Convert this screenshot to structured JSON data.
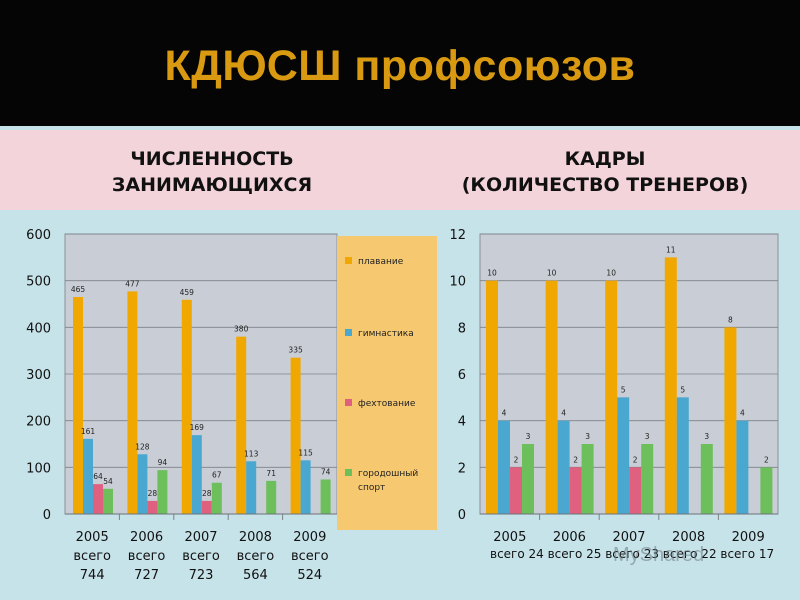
{
  "title": "КДЮСШ профсоюзов",
  "left_heading": [
    "ЧИСЛЕННОСТЬ",
    "ЗАНИМАЮЩИХСЯ"
  ],
  "right_heading": [
    "КАДРЫ",
    "(КОЛИЧЕСТВО ТРЕНЕРОВ)"
  ],
  "watermark": "MyShared",
  "colors": {
    "swimming": "#f0a800",
    "gymnastics": "#4aa8d0",
    "fencing": "#e06080",
    "gorodki": "#6cbf5a",
    "plot_bg": "#c9ced6",
    "legend_bg": "#f6c870"
  },
  "chart_data": [
    {
      "type": "bar",
      "categories": [
        [
          "2005",
          "всего",
          "744"
        ],
        [
          "2006",
          "всего",
          "727"
        ],
        [
          "2007",
          "всего",
          "723"
        ],
        [
          "2008",
          "всего",
          "564"
        ],
        [
          "2009",
          "всего",
          "524"
        ]
      ],
      "ylim": [
        0,
        600
      ],
      "yticks": [
        "0",
        "100",
        "200",
        "300",
        "400",
        "500",
        "600"
      ],
      "series": [
        {
          "name": "плавание",
          "color": "#f0a800",
          "values": [
            465,
            477,
            459,
            380,
            335
          ],
          "labels": [
            "465",
            "477",
            "459",
            "380",
            "335"
          ]
        },
        {
          "name": "гимнастика",
          "color": "#4aa8d0",
          "values": [
            161,
            128,
            169,
            113,
            115
          ],
          "labels": [
            "161",
            "128",
            "169",
            "113",
            "115"
          ]
        },
        {
          "name": "фехтование",
          "color": "#e06080",
          "values": [
            64,
            28,
            28,
            null,
            null
          ],
          "labels": [
            "64",
            "28",
            "28",
            "",
            ""
          ]
        },
        {
          "name": "городошный спорт",
          "color": "#6cbf5a",
          "values": [
            54,
            94,
            67,
            71,
            74
          ],
          "labels": [
            "54",
            "94",
            "67",
            "71",
            "74"
          ]
        }
      ]
    },
    {
      "type": "bar",
      "categories": [
        [
          "2005"
        ],
        [
          "2006"
        ],
        [
          "2007"
        ],
        [
          "2008"
        ],
        [
          "2009"
        ]
      ],
      "category_sublabel": "всего 24 всего 25 всего 23 всего 22 всего 17",
      "ylim": [
        0,
        12
      ],
      "yticks": [
        "0",
        "2",
        "4",
        "6",
        "8",
        "10",
        "12"
      ],
      "series": [
        {
          "color": "#f0a800",
          "values": [
            10,
            10,
            10,
            11,
            8
          ],
          "labels": [
            "10",
            "10",
            "10",
            "11",
            "8"
          ]
        },
        {
          "color": "#4aa8d0",
          "values": [
            4,
            4,
            5,
            5,
            4
          ],
          "labels": [
            "4",
            "4",
            "5",
            "5",
            "4"
          ]
        },
        {
          "color": "#e06080",
          "values": [
            2,
            2,
            2,
            null,
            null
          ],
          "labels": [
            "2",
            "2",
            "2",
            "",
            ""
          ]
        },
        {
          "color": "#6cbf5a",
          "values": [
            3,
            3,
            3,
            3,
            2
          ],
          "labels": [
            "3",
            "3",
            "3",
            "3",
            "2"
          ]
        }
      ]
    }
  ]
}
